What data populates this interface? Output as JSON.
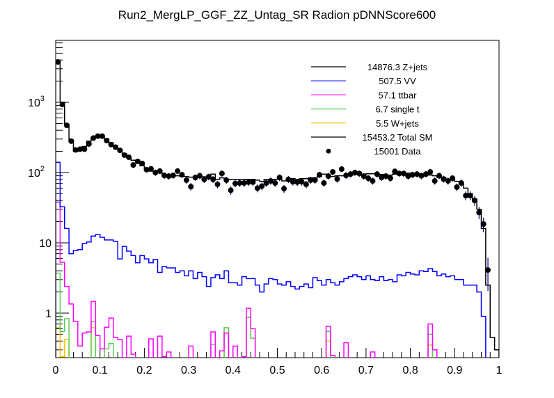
{
  "chart_data": {
    "type": "bar",
    "title": "Run2_MergLP_GGF_ZZ_Untag_SR Radion  pDNNScore600",
    "xlabel": "",
    "ylabel": "",
    "xlim": [
      0,
      1
    ],
    "ylim": [
      0.23,
      7800
    ],
    "yscale": "log",
    "bins": 100,
    "x_tick_labels": [
      "0",
      "0.1",
      "0.2",
      "0.3",
      "0.4",
      "0.5",
      "0.6",
      "0.7",
      "0.8",
      "0.9",
      "1"
    ],
    "y_tick_labels": [
      {
        "base": "1",
        "exp": ""
      },
      {
        "base": "10",
        "exp": ""
      },
      {
        "base": "10",
        "exp": "2"
      },
      {
        "base": "10",
        "exp": "3"
      }
    ],
    "legend_position": "top-right",
    "legend": [
      {
        "label": "14876.3 Z+jets",
        "color": "#000000",
        "kind": "line"
      },
      {
        "label": "507.5 VV",
        "color": "#0000ff",
        "kind": "line"
      },
      {
        "label": "57.1 ttbar",
        "color": "#ff00ff",
        "kind": "line"
      },
      {
        "label": "6.7 single t",
        "color": "#55cc55",
        "kind": "line"
      },
      {
        "label": "5.5 W+jets",
        "color": "#ffc000",
        "kind": "line"
      },
      {
        "label": "15453.2 Total SM",
        "color": "#000000",
        "kind": "line"
      },
      {
        "label": "15001 Data",
        "color": "#000000",
        "kind": "marker"
      }
    ],
    "stacked_series": [
      {
        "name": "Total SM",
        "color": "#000000",
        "values": [
          3900,
          1000,
          480,
          290,
          200,
          215,
          235,
          280,
          315,
          320,
          320,
          300,
          265,
          240,
          210,
          185,
          165,
          150,
          140,
          125,
          110,
          105,
          102,
          100,
          92,
          90,
          90,
          90,
          88,
          88,
          86,
          86,
          88,
          87,
          86,
          95,
          80,
          84,
          80,
          80,
          80,
          80,
          80,
          80,
          80,
          78,
          75,
          80,
          78,
          80,
          84,
          76,
          82,
          82,
          80,
          82,
          82,
          84,
          84,
          88,
          95,
          88,
          88,
          90,
          90,
          92,
          92,
          94,
          94,
          94,
          96,
          96,
          96,
          94,
          92,
          92,
          95,
          96,
          96,
          98,
          95,
          95,
          94,
          93,
          92,
          90,
          85,
          85,
          80,
          80,
          75,
          68,
          60,
          50,
          42,
          30,
          16,
          2.5,
          0.45,
          0.3
        ]
      },
      {
        "name": "VV",
        "color": "#0000ff",
        "values": [
          140,
          32.6,
          16,
          7,
          7.8,
          8,
          9.8,
          10.3,
          12.5,
          13.1,
          12,
          11,
          11,
          10.5,
          5.9,
          8.9,
          7.6,
          6.6,
          5.2,
          6.6,
          5.9,
          5.2,
          5.8,
          3.8,
          4.6,
          4.4,
          4.4,
          3.8,
          4.0,
          3.4,
          4.0,
          3.1,
          3.8,
          3.3,
          2.4,
          3.2,
          3.5,
          3.1,
          4.0,
          2.7,
          2.7,
          2.5,
          3.3,
          3.1,
          3.1,
          2.5,
          2.0,
          2.6,
          3.1,
          3.0,
          2.6,
          2.5,
          2.8,
          2.4,
          2.2,
          2.4,
          2.6,
          2.3,
          3.2,
          2.9,
          2.5,
          3.0,
          2.7,
          2.5,
          2.8,
          3.1,
          3.3,
          3.5,
          3.3,
          3.0,
          3.4,
          3.0,
          2.9,
          3.3,
          2.9,
          3.0,
          2.8,
          3.5,
          3.4,
          3.8,
          3.6,
          3.5,
          4.0,
          3.9,
          4.3,
          3.9,
          3.4,
          3.6,
          3.3,
          3.4,
          3.0,
          3.0,
          2.5,
          2.5,
          2.5,
          2.0,
          0.9,
          0,
          0,
          0
        ]
      },
      {
        "name": "ttbar",
        "color": "#ff00ff",
        "values": [
          38,
          5.3,
          2.4,
          1.35,
          0.76,
          0.34,
          0.52,
          0.54,
          1.47,
          0.48,
          0.31,
          0.63,
          0.85,
          0.45,
          0.42,
          0,
          0.47,
          0.26,
          0,
          0,
          0,
          0.43,
          0,
          0.47,
          0.24,
          0.28,
          0,
          0,
          0,
          0,
          0.34,
          0,
          0,
          0,
          0,
          0.54,
          0,
          0.29,
          0.52,
          0,
          0.34,
          0,
          0.24,
          1.17,
          0.6,
          0,
          0,
          0,
          0,
          0,
          0,
          0,
          0,
          0,
          0,
          0,
          0,
          0,
          0,
          0,
          0,
          0.65,
          0.25,
          0,
          0,
          0.38,
          0,
          0,
          0,
          0,
          0,
          0.28,
          0,
          0,
          0,
          0,
          0,
          0,
          0,
          0,
          0,
          0,
          0,
          0,
          0.7,
          0.3,
          0,
          0,
          0,
          0,
          0,
          0,
          0,
          0,
          0,
          0,
          0,
          0,
          0,
          0
        ]
      },
      {
        "name": "single t",
        "color": "#55cc55",
        "values": [
          3.7,
          0.55,
          0.83,
          0,
          0,
          0,
          0,
          0,
          0.76,
          0,
          0,
          0.31,
          0.37,
          0,
          0,
          0,
          0,
          0,
          0,
          0,
          0,
          0,
          0,
          0,
          0,
          0,
          0,
          0,
          0,
          0,
          0,
          0,
          0,
          0,
          0,
          0.36,
          0,
          0,
          0.62,
          0,
          0,
          0,
          0,
          0.87,
          0.44,
          0,
          0,
          0,
          0,
          0,
          0,
          0,
          0,
          0,
          0,
          0,
          0,
          0,
          0,
          0,
          0,
          0.55,
          0,
          0,
          0,
          0,
          0,
          0,
          0,
          0,
          0,
          0,
          0,
          0,
          0,
          0,
          0,
          0,
          0,
          0,
          0,
          0,
          0,
          0,
          0.5,
          0,
          0,
          0,
          0,
          0,
          0,
          0,
          0,
          0,
          0,
          0,
          0,
          0,
          0,
          0
        ]
      },
      {
        "name": "W+jets",
        "color": "#ffc000",
        "values": [
          0.62,
          0.24,
          0.42,
          0,
          0,
          0,
          0,
          0,
          0.62,
          0,
          0,
          0,
          0,
          0,
          0,
          0,
          0,
          0,
          0,
          0,
          0,
          0,
          0,
          0,
          0,
          0,
          0,
          0,
          0,
          0,
          0,
          0,
          0,
          0,
          0,
          0,
          0,
          0,
          0.62,
          0,
          0,
          0,
          0,
          0.87,
          0.44,
          0,
          0,
          0,
          0,
          0,
          0,
          0,
          0,
          0,
          0,
          0,
          0,
          0,
          0,
          0,
          0,
          0.4,
          0,
          0,
          0,
          0,
          0,
          0,
          0,
          0,
          0,
          0,
          0,
          0,
          0,
          0,
          0,
          0,
          0,
          0,
          0,
          0,
          0,
          0,
          0.35,
          0,
          0,
          0,
          0,
          0,
          0,
          0,
          0,
          0,
          0,
          0,
          0,
          0,
          0,
          0
        ]
      }
    ],
    "data_points": {
      "name": "Data",
      "values": [
        3750,
        930,
        470,
        280,
        210,
        215,
        215,
        255,
        310,
        330,
        330,
        285,
        250,
        230,
        207,
        177,
        165,
        128,
        144,
        135,
        110,
        113,
        100,
        105,
        91,
        89,
        91,
        105,
        93,
        78,
        63,
        85,
        90,
        80,
        87,
        80,
        68,
        97,
        78,
        56,
        70,
        71,
        71,
        73,
        73,
        60,
        64,
        71,
        76,
        71,
        85,
        59,
        80,
        74,
        73,
        74,
        68,
        78,
        78,
        93,
        71,
        89,
        102,
        81,
        112,
        91,
        95,
        100,
        97,
        89,
        83,
        76,
        95,
        85,
        89,
        83,
        104,
        97,
        97,
        89,
        93,
        95,
        90,
        95,
        102,
        76,
        90,
        81,
        76,
        83,
        62,
        71,
        47,
        47,
        40,
        27,
        18.5,
        4.1,
        0,
        0
      ]
    }
  }
}
